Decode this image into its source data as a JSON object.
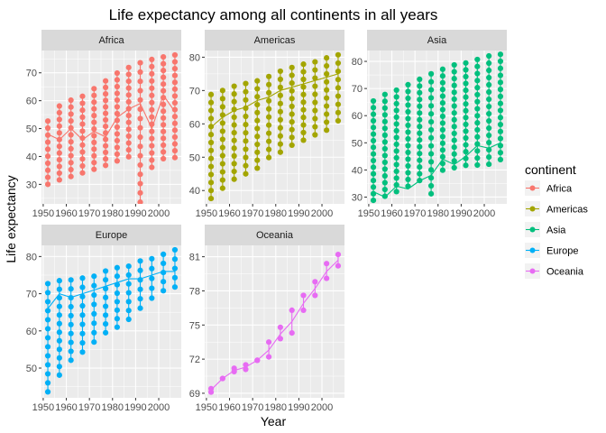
{
  "chart_data": {
    "type": "line",
    "title": "Life expectancy among all continents in all years",
    "xlabel": "Year",
    "ylabel": "Life expectancy",
    "legend": {
      "title": "continent",
      "placement": "right",
      "entries": [
        "Africa",
        "Americas",
        "Asia",
        "Europe",
        "Oceania"
      ]
    },
    "x_ticks": [
      1950,
      1960,
      1970,
      1980,
      1990,
      2000
    ],
    "x_tick_labels": [
      "1950",
      "1960",
      "1970",
      "1980",
      "1990",
      "2000"
    ],
    "years": [
      1952,
      1957,
      1962,
      1967,
      1972,
      1977,
      1982,
      1987,
      1992,
      1997,
      2002,
      2007
    ],
    "facets": [
      {
        "name": "Africa",
        "color": "#F8766D",
        "ylim": [
          23,
          78
        ],
        "yticks": [
          30,
          40,
          50,
          60,
          70
        ],
        "min": [
          30.0,
          31.6,
          32.8,
          34.1,
          35.4,
          36.8,
          38.4,
          39.9,
          23.6,
          36.1,
          39.2,
          39.6
        ],
        "max": [
          52.7,
          58.1,
          60.2,
          61.6,
          64.3,
          67.1,
          69.9,
          71.9,
          73.6,
          74.8,
          75.7,
          76.4
        ],
        "line": [
          48,
          46,
          50,
          46,
          49,
          47,
          54,
          57,
          59,
          50,
          62,
          56
        ]
      },
      {
        "name": "Americas",
        "color": "#A3A500",
        "ylim": [
          36,
          82
        ],
        "yticks": [
          40,
          50,
          60,
          70,
          80
        ],
        "min": [
          37.6,
          40.7,
          43.4,
          45.0,
          46.7,
          49.9,
          51.5,
          53.6,
          55.1,
          56.7,
          58.1,
          60.9
        ],
        "max": [
          68.8,
          70.0,
          71.3,
          72.1,
          72.9,
          74.2,
          75.8,
          76.9,
          77.9,
          78.6,
          79.8,
          80.7
        ],
        "line": [
          59,
          62,
          64,
          65,
          67,
          68,
          70,
          71,
          72,
          73,
          74,
          75
        ]
      },
      {
        "name": "Asia",
        "color": "#00BF7D",
        "ylim": [
          27.5,
          84
        ],
        "yticks": [
          30,
          40,
          50,
          60,
          70,
          80
        ],
        "min": [
          28.8,
          30.3,
          32.0,
          34.0,
          36.1,
          31.2,
          39.9,
          40.8,
          41.7,
          41.8,
          42.1,
          43.8
        ],
        "max": [
          65.4,
          67.8,
          69.4,
          71.4,
          73.4,
          75.4,
          77.1,
          78.7,
          79.4,
          80.7,
          82.0,
          82.6
        ],
        "line": [
          32,
          30,
          34,
          33,
          36,
          38,
          44,
          42,
          45,
          49,
          48,
          50
        ]
      },
      {
        "name": "Europe",
        "color": "#00B0F6",
        "ylim": [
          42,
          83
        ],
        "yticks": [
          50,
          60,
          70,
          80
        ],
        "min": [
          43.6,
          48.1,
          52.1,
          54.3,
          57.0,
          59.5,
          61.0,
          63.1,
          66.1,
          68.8,
          70.8,
          71.8
        ],
        "max": [
          72.7,
          73.5,
          73.7,
          74.2,
          74.7,
          76.1,
          76.99,
          77.4,
          78.8,
          79.4,
          80.6,
          81.8
        ],
        "line": [
          66,
          70,
          69,
          70,
          71,
          72,
          73,
          74,
          74,
          75,
          76,
          76
        ]
      },
      {
        "name": "Oceania",
        "color": "#E76BF3",
        "ylim": [
          68.6,
          82
        ],
        "yticks": [
          69,
          72,
          75,
          78,
          81
        ],
        "min": [
          69.1,
          70.3,
          70.9,
          71.1,
          71.9,
          72.2,
          73.8,
          74.3,
          76.3,
          77.6,
          79.1,
          80.2
        ],
        "max": [
          69.4,
          70.3,
          71.2,
          71.5,
          71.9,
          73.5,
          74.8,
          76.3,
          77.6,
          78.8,
          80.4,
          81.2
        ],
        "line": [
          69.3,
          70.3,
          71.0,
          71.3,
          71.9,
          72.8,
          74.2,
          75.3,
          76.9,
          78.2,
          79.7,
          80.7
        ]
      }
    ]
  }
}
